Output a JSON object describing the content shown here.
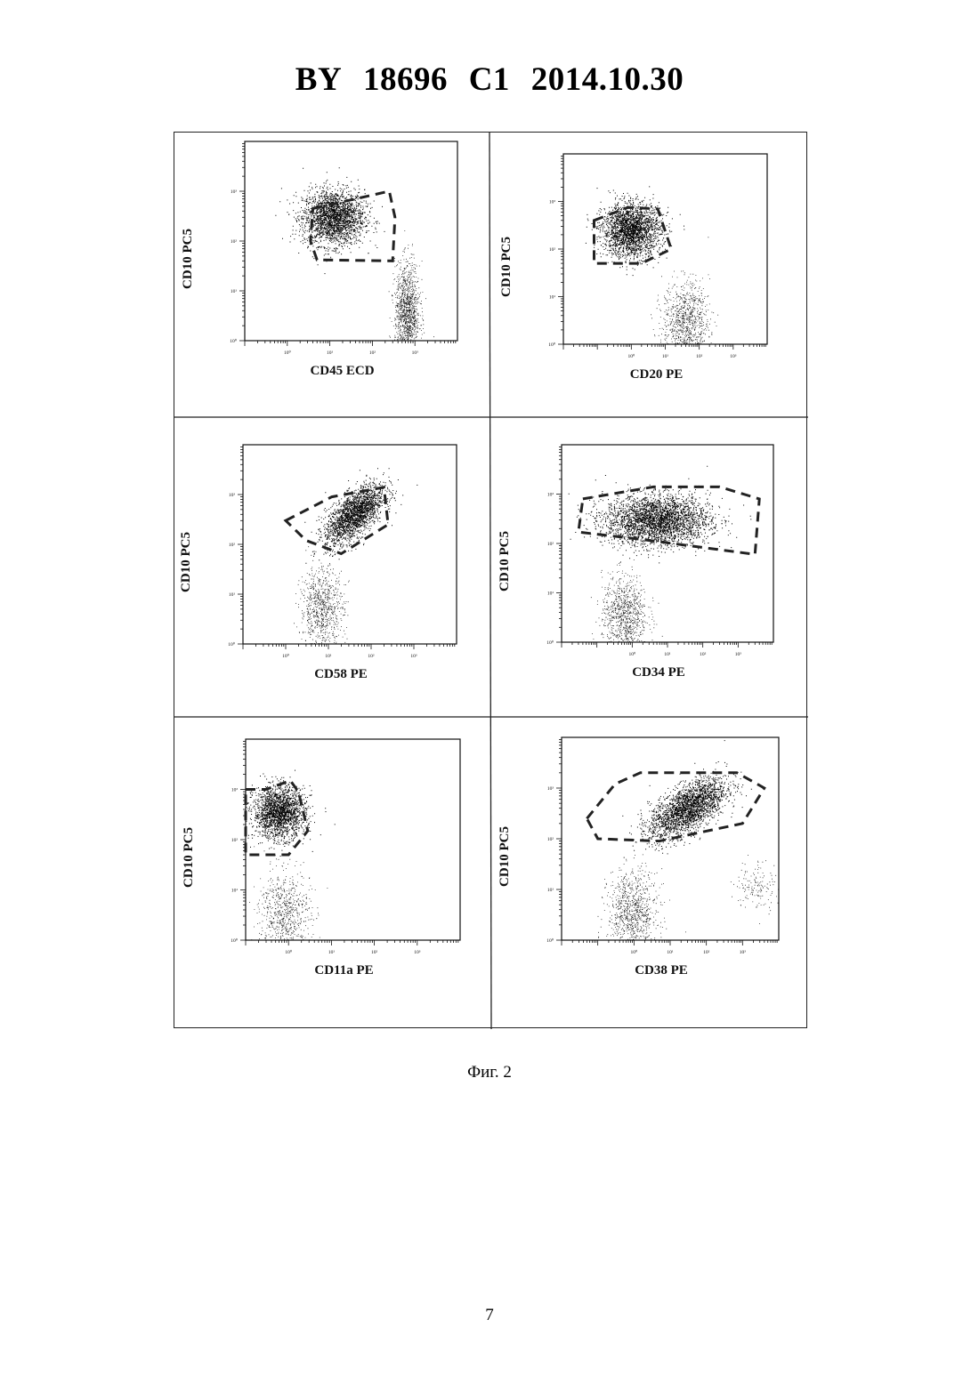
{
  "header": {
    "country": "BY",
    "number": "18696",
    "kind": "C1",
    "date": "2014.10.30"
  },
  "caption": "Фиг. 2",
  "page_number": "7",
  "chart_data": [
    {
      "type": "scatter",
      "xlabel": "CD45 ECD",
      "ylabel": "CD10 PC5",
      "x_scale": "log",
      "y_scale": "log",
      "x_range": [
        0.1,
        10000
      ],
      "y_range": [
        1,
        10000
      ],
      "x_ticks": [
        "10⁰",
        "10¹",
        "10²",
        "10³"
      ],
      "y_ticks": [
        "10⁰",
        "10¹",
        "10²",
        "10³"
      ],
      "populations": [
        {
          "x_center": 12,
          "y_center": 300,
          "x_spread": 2.3,
          "y_spread": 1.9,
          "density": "high",
          "n": 2300
        },
        {
          "x_center": 650,
          "y_center": 3.5,
          "x_spread": 1.4,
          "y_spread": 3.2,
          "density": "medium",
          "n": 1200
        }
      ],
      "gate": [
        [
          4,
          450
        ],
        [
          250,
          1000
        ],
        [
          340,
          300
        ],
        [
          300,
          40
        ],
        [
          5,
          42
        ],
        [
          3.5,
          100
        ]
      ]
    },
    {
      "type": "scatter",
      "xlabel": "CD20 PE",
      "ylabel": "CD10 PC5",
      "x_scale": "log",
      "y_scale": "log",
      "x_range": [
        0.01,
        10000
      ],
      "y_range": [
        1,
        10000
      ],
      "x_ticks": [
        "10⁰",
        "10¹",
        "10²",
        "10³"
      ],
      "y_ticks": [
        "10⁰",
        "10¹",
        "10²",
        "10³"
      ],
      "populations": [
        {
          "x_center": 1.0,
          "y_center": 250,
          "x_spread": 2.7,
          "y_spread": 1.9,
          "density": "high",
          "n": 2300
        },
        {
          "x_center": 40,
          "y_center": 3.0,
          "x_spread": 2.2,
          "y_spread": 2.6,
          "density": "low",
          "n": 900
        }
      ],
      "gate": [
        [
          0.08,
          400
        ],
        [
          0.8,
          750
        ],
        [
          6,
          700
        ],
        [
          15,
          100
        ],
        [
          2,
          50
        ],
        [
          0.08,
          50
        ]
      ]
    },
    {
      "type": "scatter",
      "xlabel": "CD58 PE",
      "ylabel": "CD10 PC5",
      "x_scale": "log",
      "y_scale": "log",
      "x_range": [
        0.1,
        10000
      ],
      "y_range": [
        1,
        10000
      ],
      "x_ticks": [
        "10⁰",
        "10¹",
        "10²",
        "10³"
      ],
      "y_ticks": [
        "10⁰",
        "10¹",
        "10²",
        "10³"
      ],
      "populations": [
        {
          "x_center": 40,
          "y_center": 400,
          "x_spread": 2.2,
          "y_spread": 1.7,
          "density": "high",
          "n": 2100,
          "slope": 0.55
        },
        {
          "x_center": 7,
          "y_center": 5,
          "x_spread": 1.8,
          "y_spread": 2.6,
          "density": "low",
          "n": 800
        }
      ],
      "gate": [
        [
          1.0,
          300
        ],
        [
          12,
          900
        ],
        [
          200,
          1400
        ],
        [
          250,
          250
        ],
        [
          20,
          65
        ],
        [
          3,
          120
        ]
      ]
    },
    {
      "type": "scatter",
      "xlabel": "CD34 PE",
      "ylabel": "CD10 PC5",
      "x_scale": "log",
      "y_scale": "log",
      "x_range": [
        0.01,
        10000
      ],
      "y_range": [
        1,
        10000
      ],
      "x_ticks": [
        "10⁰",
        "10¹",
        "10²",
        "10³"
      ],
      "y_ticks": [
        "10⁰",
        "10¹",
        "10²",
        "10³"
      ],
      "populations": [
        {
          "x_center": 5,
          "y_center": 300,
          "x_spread": 5.5,
          "y_spread": 1.8,
          "density": "high",
          "n": 3000
        },
        {
          "x_center": 0.6,
          "y_center": 3.5,
          "x_spread": 2.1,
          "y_spread": 2.6,
          "density": "low",
          "n": 900
        }
      ],
      "gate": [
        [
          0.04,
          800
        ],
        [
          4,
          1400
        ],
        [
          300,
          1400
        ],
        [
          4000,
          800
        ],
        [
          3000,
          60
        ],
        [
          2,
          120
        ],
        [
          0.03,
          170
        ]
      ]
    },
    {
      "type": "scatter",
      "xlabel": "CD11a PE",
      "ylabel": "CD10 PC5",
      "x_scale": "log",
      "y_scale": "log",
      "x_range": [
        0.1,
        10000
      ],
      "y_range": [
        1,
        10000
      ],
      "x_ticks": [
        "10⁰",
        "10¹",
        "10²",
        "10³"
      ],
      "y_ticks": [
        "10⁰",
        "10¹",
        "10²",
        "10³"
      ],
      "populations": [
        {
          "x_center": 0.6,
          "y_center": 350,
          "x_spread": 2.0,
          "y_spread": 1.8,
          "density": "high",
          "n": 2000
        },
        {
          "x_center": 0.8,
          "y_center": 3.5,
          "x_spread": 2.0,
          "y_spread": 2.6,
          "density": "low",
          "n": 700
        }
      ],
      "gate": [
        [
          0.1,
          1000
        ],
        [
          0.3,
          1000
        ],
        [
          1.1,
          1500
        ],
        [
          1.7,
          900
        ],
        [
          2.8,
          150
        ],
        [
          1.0,
          50
        ],
        [
          0.1,
          50
        ]
      ]
    },
    {
      "type": "scatter",
      "xlabel": "CD38 PE",
      "ylabel": "CD10 PC5",
      "x_scale": "log",
      "y_scale": "log",
      "x_range": [
        0.01,
        10000
      ],
      "y_range": [
        1,
        10000
      ],
      "x_ticks": [
        "10⁰",
        "10¹",
        "10²",
        "10³"
      ],
      "y_ticks": [
        "10⁰",
        "10¹",
        "10²",
        "10³"
      ],
      "populations": [
        {
          "x_center": 30,
          "y_center": 400,
          "x_spread": 3.4,
          "y_spread": 1.7,
          "density": "high",
          "n": 2400,
          "slope": 0.35
        },
        {
          "x_center": 0.9,
          "y_center": 3.5,
          "x_spread": 2.2,
          "y_spread": 2.6,
          "density": "low",
          "n": 900
        },
        {
          "x_center": 2500,
          "y_center": 12,
          "x_spread": 2.0,
          "y_spread": 1.8,
          "density": "sparse",
          "n": 150
        }
      ],
      "gate": [
        [
          0.05,
          250
        ],
        [
          0.3,
          1200
        ],
        [
          1.5,
          2000
        ],
        [
          700,
          2000
        ],
        [
          4000,
          1000
        ],
        [
          1000,
          200
        ],
        [
          5,
          90
        ],
        [
          0.1,
          100
        ]
      ]
    }
  ]
}
